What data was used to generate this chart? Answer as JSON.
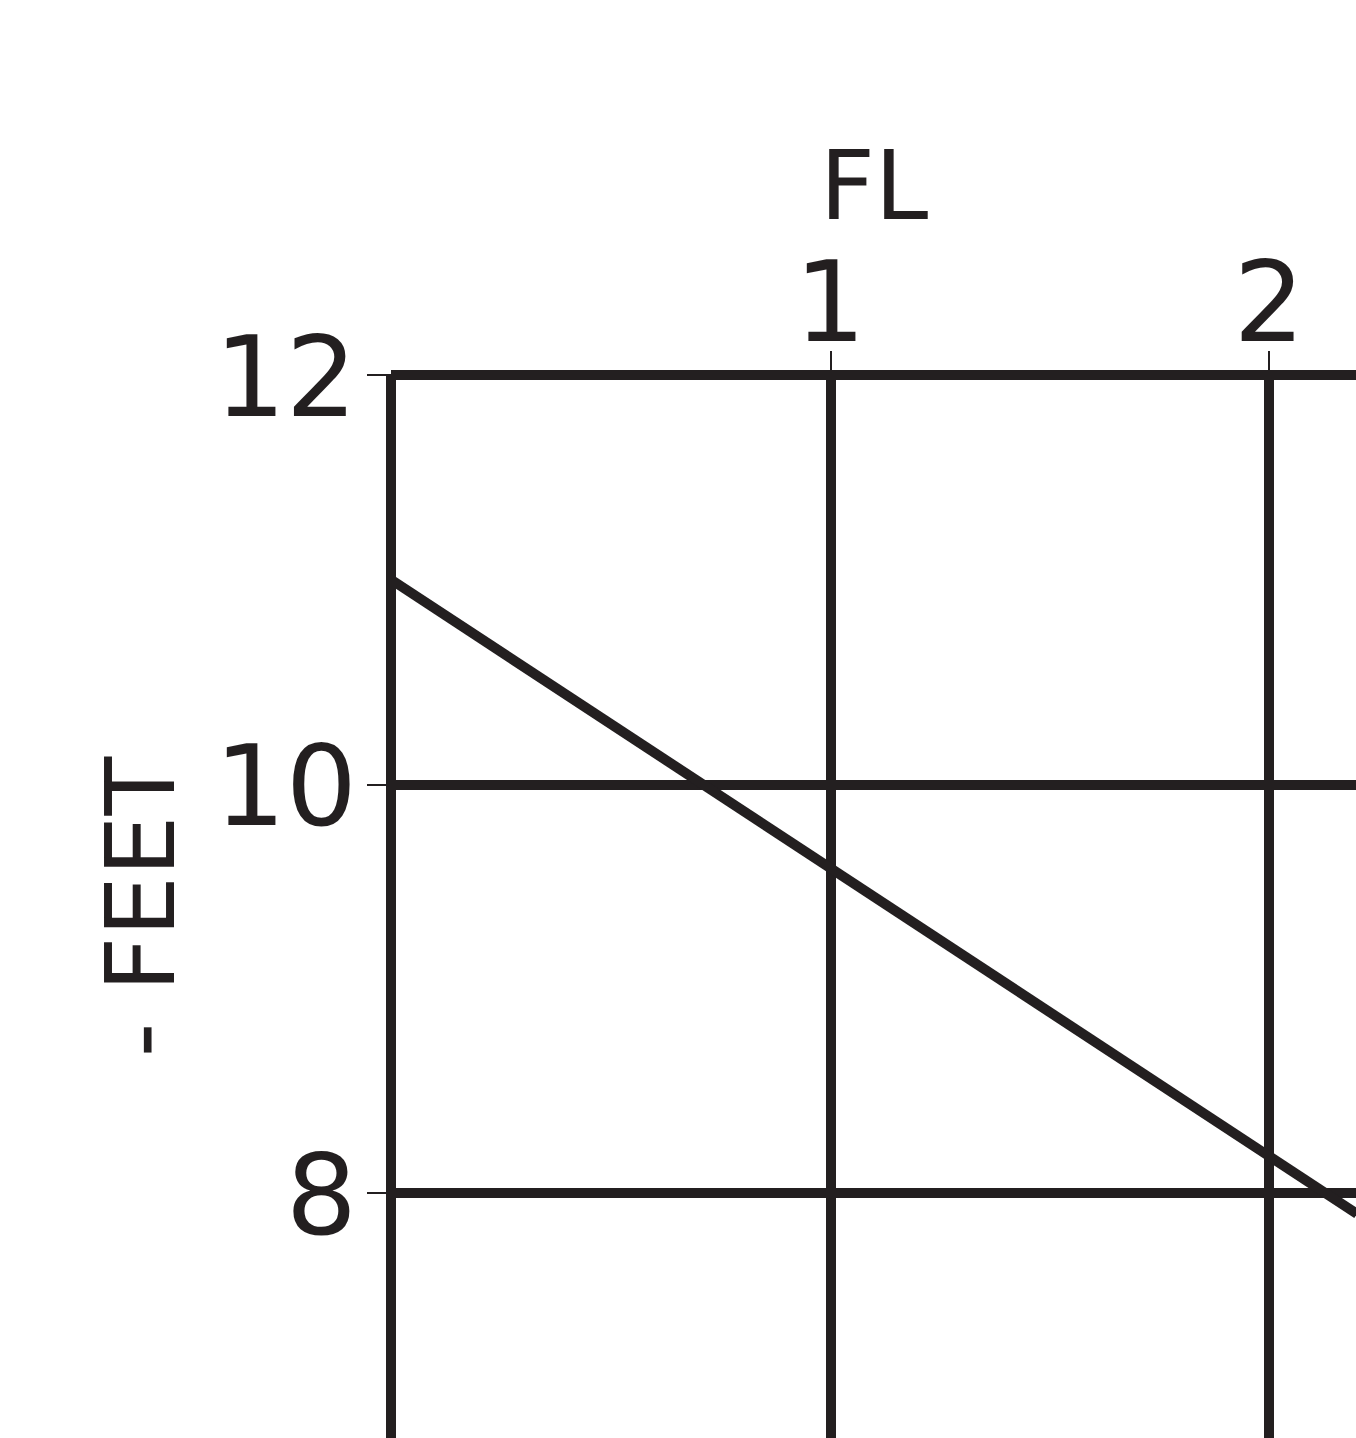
{
  "chart_data": {
    "type": "line",
    "xlabel": "FL",
    "ylabel": "- FEET",
    "x": [
      0,
      2.2
    ],
    "series": [
      {
        "color": "#231f20",
        "values": [
          11,
          7.9
        ]
      }
    ],
    "xlim": [
      0,
      2.2
    ],
    "ylim": [
      6.8,
      12
    ],
    "xticks": [
      1,
      2
    ],
    "yticks": [
      8,
      10,
      12
    ],
    "grid": true,
    "line_style": "solid",
    "marker": "none"
  }
}
